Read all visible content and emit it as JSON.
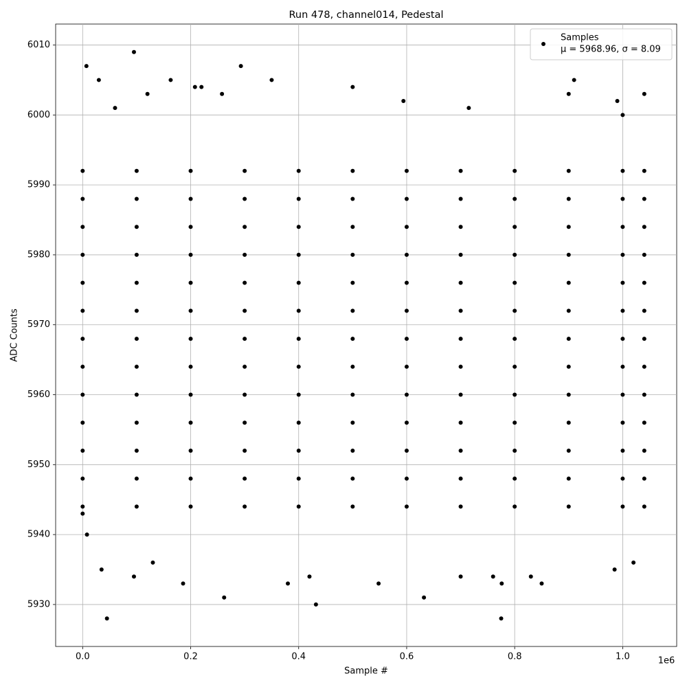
{
  "chart_data": {
    "type": "scatter",
    "title": "Run 478, channel014, Pedestal",
    "x_label": "Sample #",
    "y_label": "ADC Counts",
    "x_offset_label": "1e6",
    "xlim": [
      -50000,
      1100000
    ],
    "ylim": [
      5924,
      6013
    ],
    "xticks": [
      {
        "value": 0,
        "label": "0.0"
      },
      {
        "value": 200000,
        "label": "0.2"
      },
      {
        "value": 400000,
        "label": "0.4"
      },
      {
        "value": 600000,
        "label": "0.6"
      },
      {
        "value": 800000,
        "label": "0.8"
      },
      {
        "value": 1000000,
        "label": "1.0"
      }
    ],
    "yticks": [
      5930,
      5940,
      5950,
      5960,
      5970,
      5980,
      5990,
      6000,
      6010
    ],
    "grid": true,
    "legend_position": "upper right",
    "legend_note": "μ = 5968.96, σ = 8.09",
    "series": [
      {
        "name": "Samples",
        "color": "#000000",
        "x": [
          0,
          100000,
          200000,
          300000,
          400000,
          500000,
          600000,
          700000,
          800000,
          900000,
          1000000,
          1040000,
          0,
          100000,
          200000,
          300000,
          400000,
          500000,
          600000,
          700000,
          800000,
          900000,
          1000000,
          1040000,
          0,
          100000,
          200000,
          300000,
          400000,
          500000,
          600000,
          700000,
          800000,
          900000,
          1000000,
          1040000,
          0,
          100000,
          200000,
          300000,
          400000,
          500000,
          600000,
          700000,
          800000,
          900000,
          1000000,
          1040000,
          0,
          100000,
          200000,
          300000,
          400000,
          500000,
          600000,
          700000,
          800000,
          900000,
          1000000,
          1040000,
          0,
          100000,
          200000,
          300000,
          400000,
          500000,
          600000,
          700000,
          800000,
          900000,
          1000000,
          1040000,
          0,
          100000,
          200000,
          300000,
          400000,
          500000,
          600000,
          700000,
          800000,
          900000,
          1000000,
          1040000,
          0,
          100000,
          200000,
          300000,
          400000,
          500000,
          600000,
          700000,
          800000,
          900000,
          1000000,
          1040000,
          0,
          100000,
          200000,
          300000,
          400000,
          500000,
          600000,
          700000,
          800000,
          900000,
          1000000,
          1040000,
          0,
          100000,
          200000,
          300000,
          400000,
          500000,
          600000,
          700000,
          800000,
          900000,
          1000000,
          1040000,
          0,
          100000,
          200000,
          300000,
          400000,
          500000,
          600000,
          700000,
          800000,
          900000,
          1000000,
          1040000,
          0,
          100000,
          200000,
          300000,
          400000,
          500000,
          600000,
          700000,
          800000,
          900000,
          1000000,
          1040000,
          0,
          100000,
          200000,
          300000,
          400000,
          500000,
          600000,
          700000,
          800000,
          900000,
          1000000,
          1040000,
          7000,
          95000,
          30000,
          163000,
          208000,
          220000,
          293000,
          350000,
          500000,
          910000,
          1040000,
          258000,
          0,
          8000,
          35000,
          45000,
          95000,
          130000,
          186000,
          262000,
          380000,
          420000,
          432000,
          548000,
          632000,
          775000,
          776000,
          830000,
          850000,
          985000,
          1020000,
          594000,
          715000,
          900000,
          120000,
          60000,
          990000,
          1000000,
          700000,
          760000
        ],
        "values": [
          5944,
          5944,
          5944,
          5944,
          5944,
          5944,
          5944,
          5944,
          5944,
          5944,
          5944,
          5944,
          5948,
          5948,
          5948,
          5948,
          5948,
          5948,
          5948,
          5948,
          5948,
          5948,
          5948,
          5948,
          5952,
          5952,
          5952,
          5952,
          5952,
          5952,
          5952,
          5952,
          5952,
          5952,
          5952,
          5952,
          5956,
          5956,
          5956,
          5956,
          5956,
          5956,
          5956,
          5956,
          5956,
          5956,
          5956,
          5956,
          5960,
          5960,
          5960,
          5960,
          5960,
          5960,
          5960,
          5960,
          5960,
          5960,
          5960,
          5960,
          5964,
          5964,
          5964,
          5964,
          5964,
          5964,
          5964,
          5964,
          5964,
          5964,
          5964,
          5964,
          5968,
          5968,
          5968,
          5968,
          5968,
          5968,
          5968,
          5968,
          5968,
          5968,
          5968,
          5968,
          5972,
          5972,
          5972,
          5972,
          5972,
          5972,
          5972,
          5972,
          5972,
          5972,
          5972,
          5972,
          5976,
          5976,
          5976,
          5976,
          5976,
          5976,
          5976,
          5976,
          5976,
          5976,
          5976,
          5976,
          5980,
          5980,
          5980,
          5980,
          5980,
          5980,
          5980,
          5980,
          5980,
          5980,
          5980,
          5980,
          5984,
          5984,
          5984,
          5984,
          5984,
          5984,
          5984,
          5984,
          5984,
          5984,
          5984,
          5984,
          5988,
          5988,
          5988,
          5988,
          5988,
          5988,
          5988,
          5988,
          5988,
          5988,
          5988,
          5988,
          5992,
          5992,
          5992,
          5992,
          5992,
          5992,
          5992,
          5992,
          5992,
          5992,
          5992,
          5992,
          6007,
          6009,
          6005,
          6005,
          6004,
          6004,
          6007,
          6005,
          6004,
          6005,
          6003,
          6003,
          5943,
          5940,
          5935,
          5928,
          5934,
          5936,
          5933,
          5931,
          5933,
          5934,
          5930,
          5933,
          5931,
          5928,
          5933,
          5934,
          5933,
          5935,
          5936,
          6002,
          6001,
          6003,
          6003,
          6001,
          6002,
          6000,
          5934,
          5934
        ]
      }
    ]
  }
}
